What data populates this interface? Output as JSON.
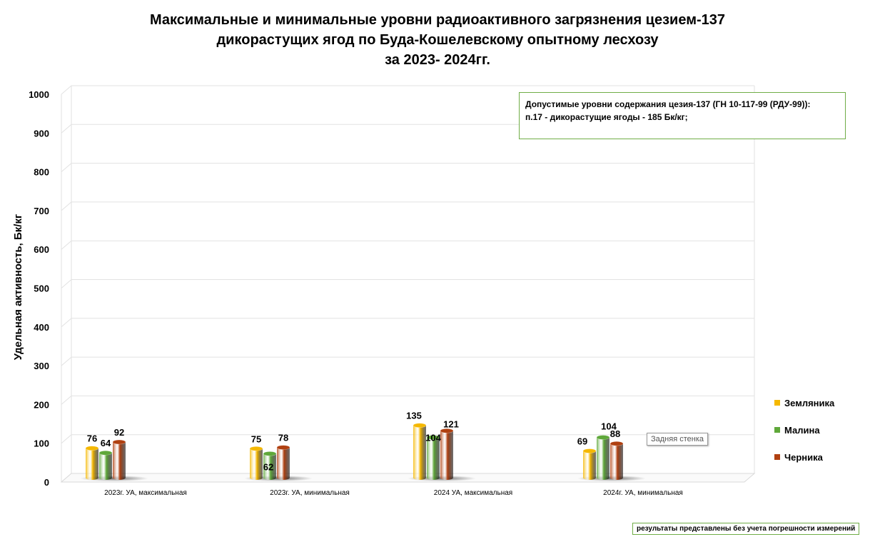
{
  "chart_data": {
    "type": "bar",
    "title": [
      "Максимальные и минимальные уровни радиоактивного загрязнения цезием-137",
      "дикорастущих ягод по Буда-Кошелевскому опытному лесхозу",
      "за 2023- 2024гг."
    ],
    "ylabel": "Удельная активность, Бк/кг",
    "xlabel": "",
    "ylim": [
      0,
      1000
    ],
    "yticks": [
      "0",
      "100",
      "200",
      "300",
      "400",
      "500",
      "600",
      "700",
      "800",
      "900",
      "1000"
    ],
    "grid": true,
    "legend_position": "right",
    "categories": [
      "2023г. УА, максимальная",
      "2023г. УА, минимальная",
      "2024 УА, максимальная",
      "2024г. УА, минимальная"
    ],
    "series": [
      {
        "name": "Земляника",
        "color": "#f5b800",
        "values": [
          76,
          75,
          135,
          69
        ]
      },
      {
        "name": "Малина",
        "color": "#5fa83a",
        "values": [
          64,
          62,
          104,
          104
        ]
      },
      {
        "name": "Черника",
        "color": "#b04010",
        "values": [
          92,
          78,
          121,
          88
        ]
      }
    ]
  },
  "note": {
    "line1": "Допустимые уровни содержания цезия-137 (ГН 10-117-99 (РДУ-99)):",
    "line2": "п.17 - дикорастущие ягоды - 185 Бк/кг;"
  },
  "tooltip": "Задняя стенка",
  "footnote": "результаты представлены без учета погрешности измерений"
}
